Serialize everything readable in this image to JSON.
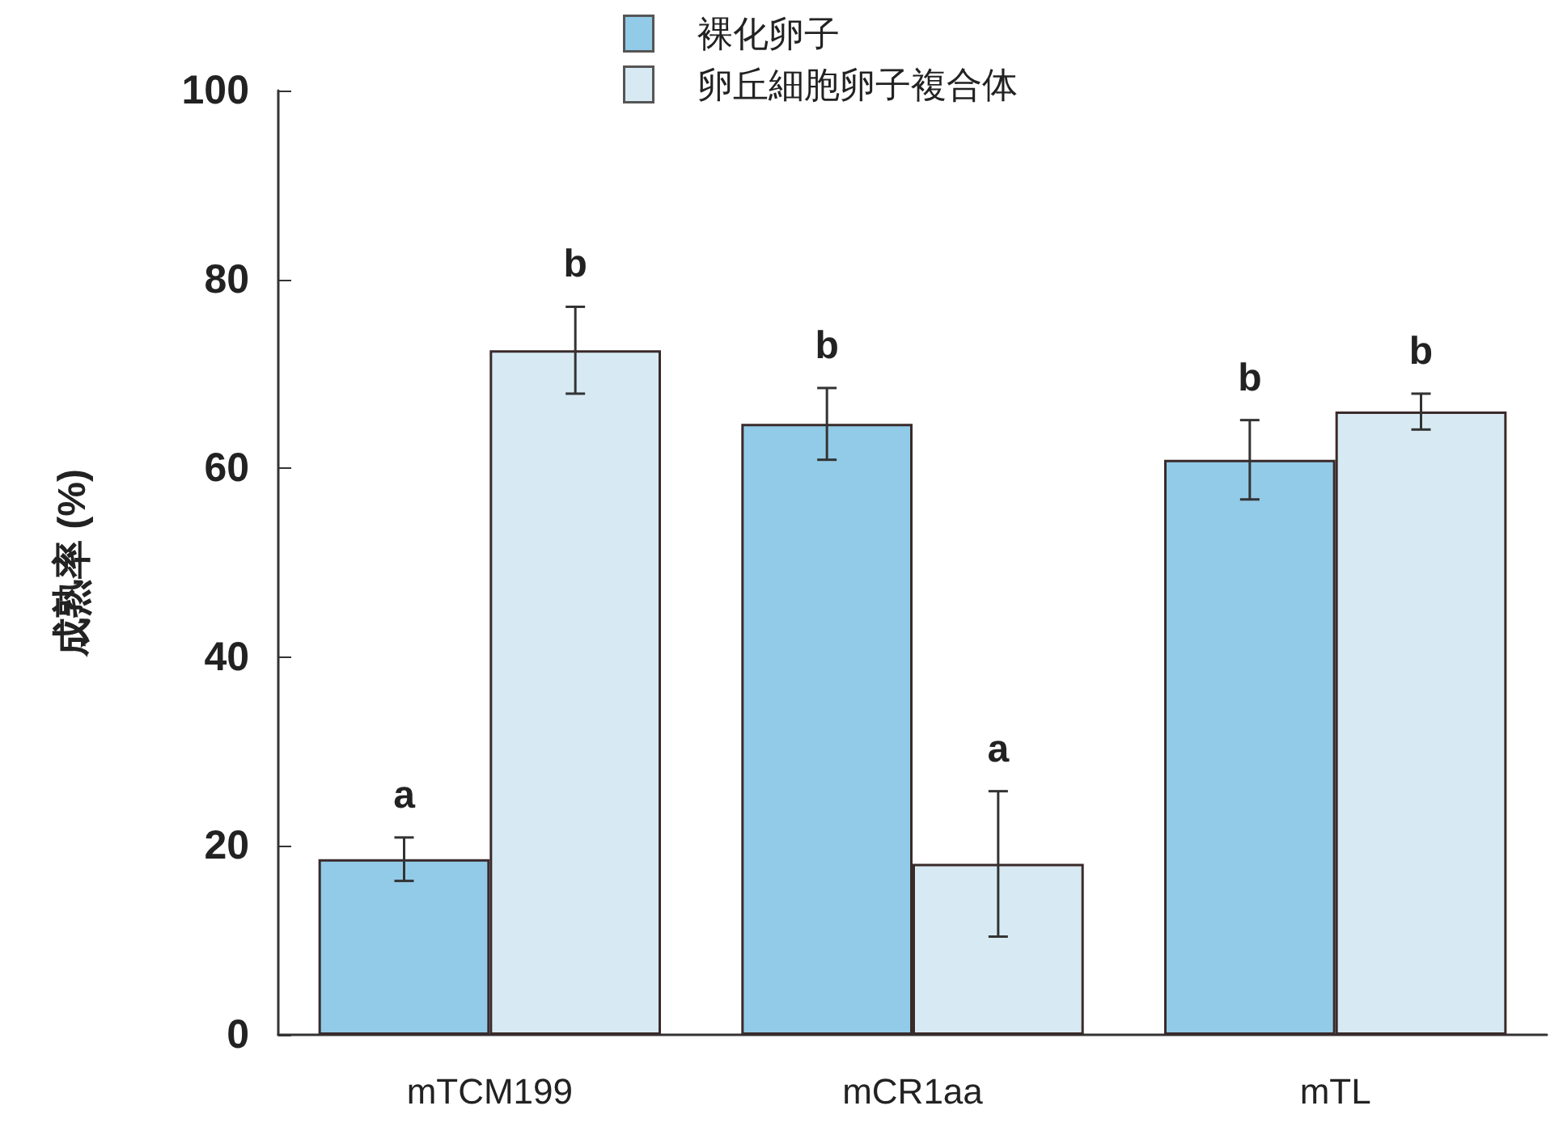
{
  "chart_data": {
    "type": "bar",
    "ylabel": "成熟率 (%)",
    "categories": [
      "mTCM199",
      "mCR1aa",
      "mTL"
    ],
    "series": [
      {
        "name": "裸化卵子",
        "color": "#92cbe8",
        "values": [
          18.6,
          64.7,
          60.9
        ],
        "errors": [
          2.3,
          3.8,
          4.2
        ],
        "value_labels": [
          "a",
          "b",
          "b"
        ]
      },
      {
        "name": "卵丘細胞卵子複合体",
        "color": "#d7eaf4",
        "values": [
          72.5,
          18.1,
          66.0
        ],
        "errors": [
          4.6,
          7.7,
          1.9
        ],
        "value_labels": [
          "b",
          "a",
          "b"
        ]
      }
    ],
    "ylim": [
      0,
      100
    ],
    "yticks": [
      0,
      20,
      40,
      60,
      80,
      100
    ],
    "grid": false,
    "legend": "top"
  }
}
